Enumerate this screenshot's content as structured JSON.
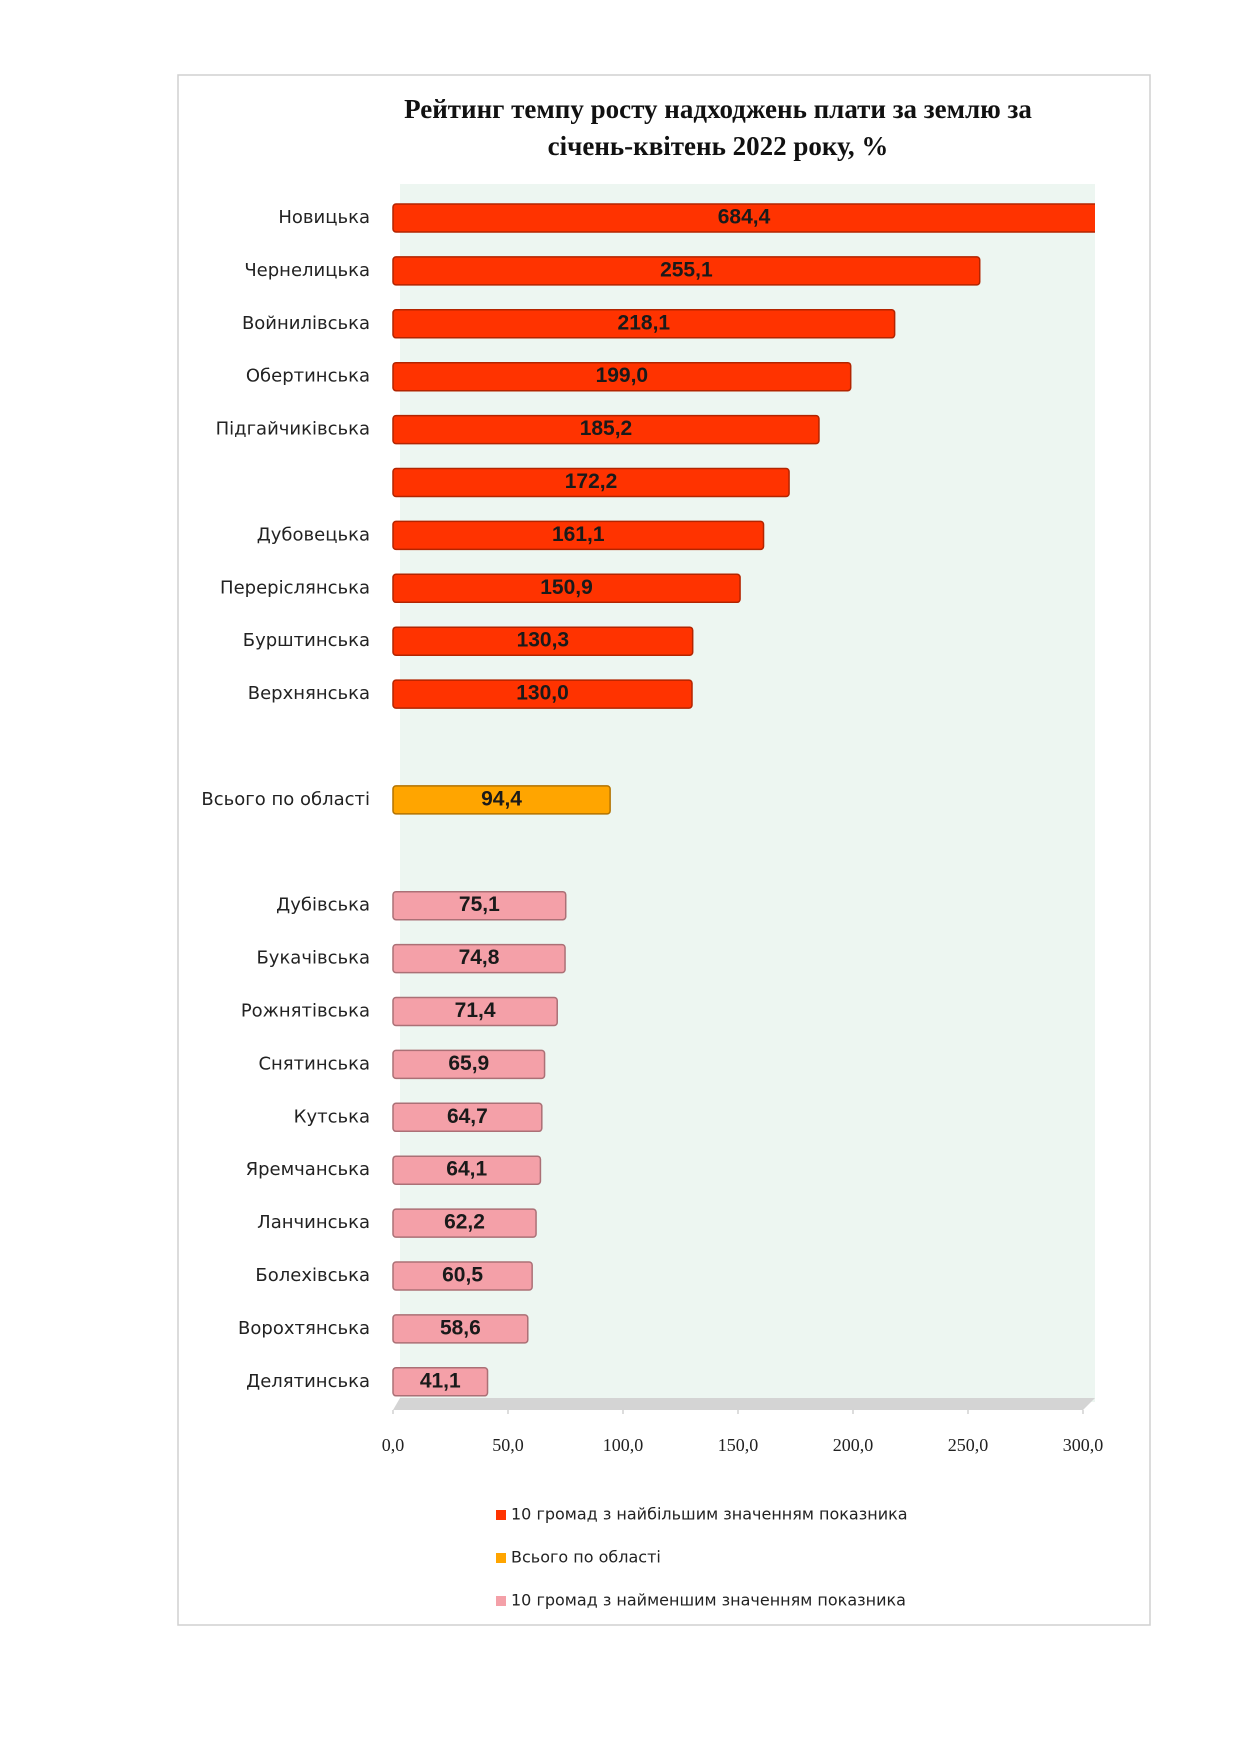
{
  "chart_data": {
    "type": "bar",
    "orientation": "horizontal",
    "title": [
      "Рейтинг темпу росту надходжень плати за землю за",
      "січень-квітень 2022 року, %"
    ],
    "categories": [
      "Новицька",
      "Чернелицька",
      "Войнилівська",
      "Обертинська",
      "Підгайчиківська",
      null,
      "Дубовецька",
      "Переріслянська",
      "Бурштинська",
      "Верхнянська",
      null,
      "Всього по області",
      null,
      "Дубівська",
      "Букачівська",
      "Рожнятівська",
      "Снятинська",
      "Кутська",
      "Яремчанська",
      "Ланчинська",
      "Болехівська",
      "Ворохтянська",
      "Делятинська"
    ],
    "series": [
      {
        "name": "10 громад з найбільшим значенням показника",
        "color": "#ff3300",
        "values": [
          684.4,
          255.1,
          218.1,
          199.0,
          185.2,
          172.2,
          161.1,
          150.9,
          130.3,
          130.0,
          null,
          null,
          null,
          null,
          null,
          null,
          null,
          null,
          null,
          null,
          null,
          null,
          null
        ],
        "value_labels": [
          "684,4",
          "255,1",
          "218,1",
          "199,0",
          "185,2",
          "172,2",
          "161,1",
          "150,9",
          "130,3",
          "130,0",
          null,
          null,
          null,
          null,
          null,
          null,
          null,
          null,
          null,
          null,
          null,
          null,
          null
        ]
      },
      {
        "name": "Всього по області",
        "color": "#ffa500",
        "values": [
          null,
          null,
          null,
          null,
          null,
          null,
          null,
          null,
          null,
          null,
          null,
          94.4,
          null,
          null,
          null,
          null,
          null,
          null,
          null,
          null,
          null,
          null,
          null
        ],
        "value_labels": [
          null,
          null,
          null,
          null,
          null,
          null,
          null,
          null,
          null,
          null,
          null,
          "94,4",
          null,
          null,
          null,
          null,
          null,
          null,
          null,
          null,
          null,
          null,
          null
        ]
      },
      {
        "name": "10 громад з найменшим значенням показника",
        "color": "#f4a0a8",
        "values": [
          null,
          null,
          null,
          null,
          null,
          null,
          null,
          null,
          null,
          null,
          null,
          null,
          null,
          75.1,
          74.8,
          71.4,
          65.9,
          64.7,
          64.1,
          62.2,
          60.5,
          58.6,
          41.1
        ],
        "value_labels": [
          null,
          null,
          null,
          null,
          null,
          null,
          null,
          null,
          null,
          null,
          null,
          null,
          null,
          "75,1",
          "74,8",
          "71,4",
          "65,9",
          "64,7",
          "64,1",
          "62,2",
          "60,5",
          "58,6",
          "41,1"
        ]
      }
    ],
    "xlim": [
      0,
      300
    ],
    "xticks": [
      {
        "value": 0,
        "label": "0,0"
      },
      {
        "value": 50,
        "label": "50,0"
      },
      {
        "value": 100,
        "label": "100,0"
      },
      {
        "value": 150,
        "label": "150,0"
      },
      {
        "value": 200,
        "label": "200,0"
      },
      {
        "value": 250,
        "label": "250,0"
      },
      {
        "value": 300,
        "label": "300,0"
      }
    ],
    "grid": false,
    "legend": "bottom"
  }
}
